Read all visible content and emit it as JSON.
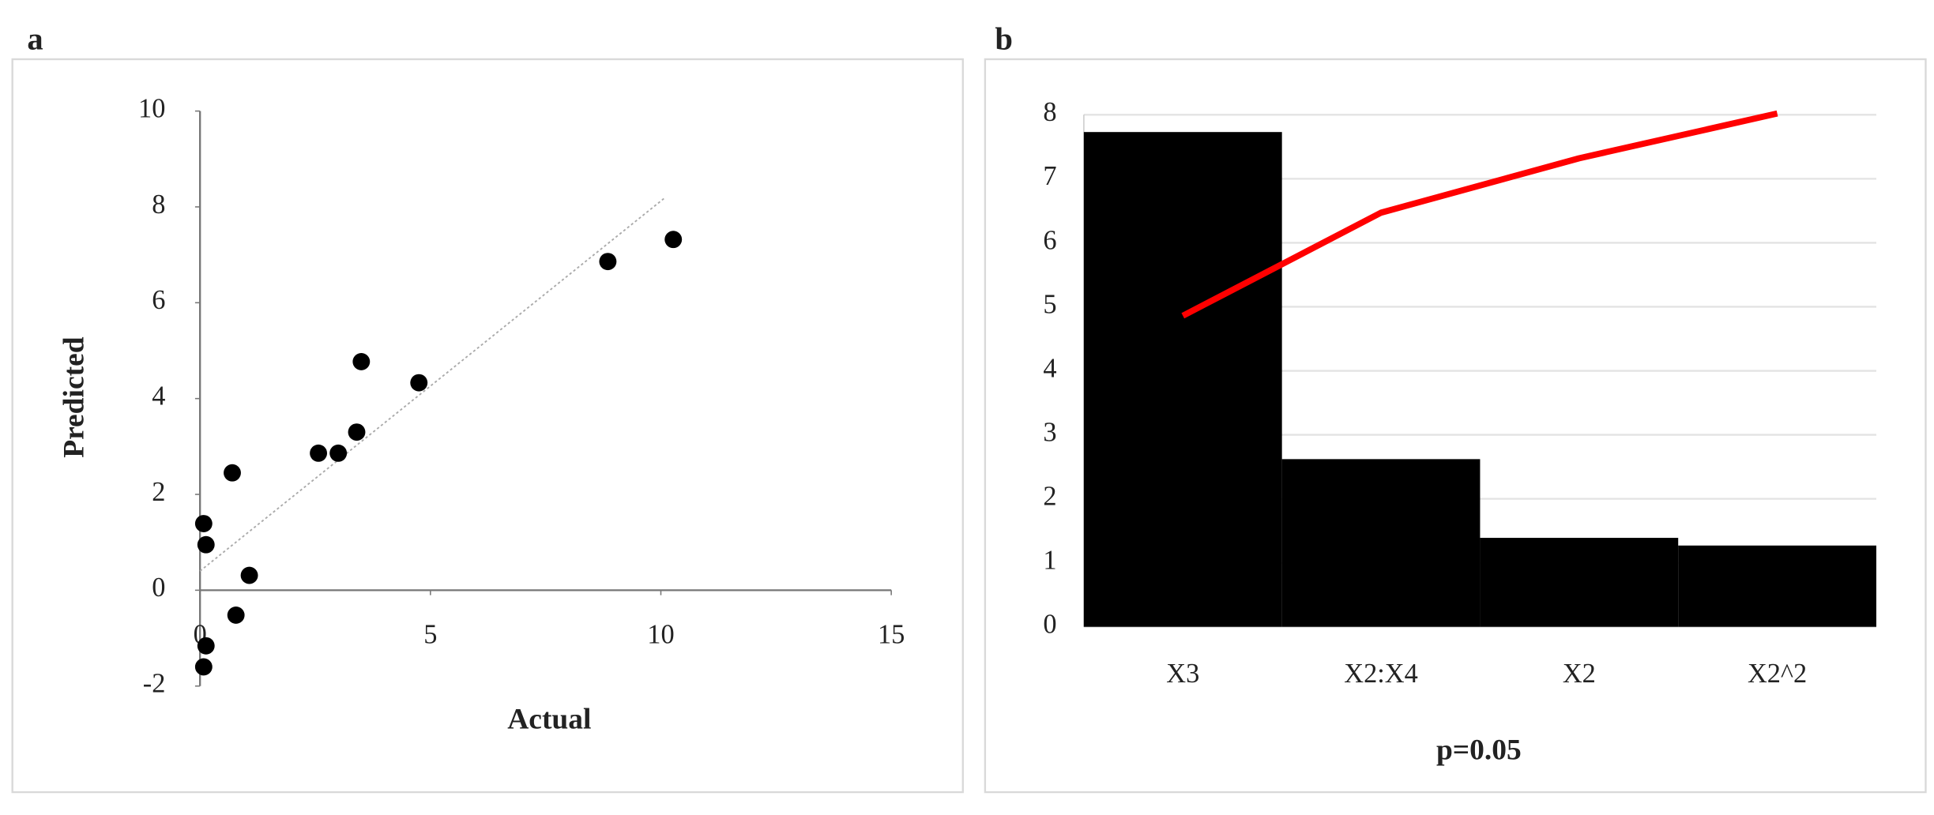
{
  "chart_data": [
    {
      "type": "scatter",
      "panel_label": "a",
      "xlabel": "Actual",
      "ylabel": "Predicted",
      "x": [
        0.08,
        0.13,
        0.13,
        0.08,
        0.7,
        0.78,
        1.07,
        2.57,
        3.0,
        3.4,
        3.5,
        4.75,
        8.85,
        10.27
      ],
      "y": [
        1.39,
        0.95,
        -1.16,
        -1.6,
        2.45,
        -0.52,
        0.31,
        2.86,
        2.86,
        3.3,
        4.77,
        4.33,
        6.86,
        7.32
      ],
      "color": "#000000",
      "trendline": {
        "x": [
          0,
          10.1
        ],
        "y": [
          0.4,
          8.2
        ],
        "color": "#aaaaaa"
      },
      "xlim": [
        0,
        15
      ],
      "xticks": [
        0,
        5,
        10,
        15
      ],
      "ylim": [
        -2,
        10
      ],
      "yticks": [
        -2,
        0,
        2,
        4,
        6,
        8,
        10
      ],
      "grid": false
    },
    {
      "type": "bar",
      "panel_label": "b",
      "xlabel": "p=0.05",
      "categories": [
        "X3",
        "X2:X4",
        "X2",
        "X2^2"
      ],
      "series": [
        {
          "kind": "bar",
          "color": "#000000",
          "values": [
            7.73,
            2.62,
            1.39,
            1.27
          ]
        },
        {
          "kind": "line",
          "color": "#ff0000",
          "values": [
            4.86,
            6.47,
            7.32,
            8.02
          ]
        }
      ],
      "ylim": [
        0,
        8
      ],
      "yticks": [
        0,
        1,
        2,
        3,
        4,
        5,
        6,
        7,
        8
      ],
      "grid": true
    }
  ]
}
